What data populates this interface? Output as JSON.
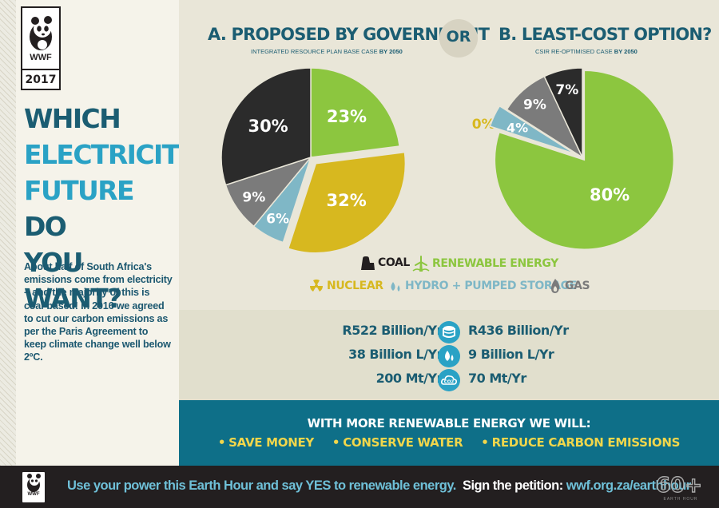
{
  "logo": {
    "name": "WWF",
    "year": "2017"
  },
  "headline": {
    "w1": "WHICH",
    "w2": "ELECTRICITY",
    "w3": "FUTURE",
    "w4": "DO",
    "w5": "YOU WANT?"
  },
  "intro": "About half of South Africa's emissions come from electricity – and the majority of this is coal-based! In 2016 we agreed to cut our carbon emissions as per the Paris Agreement to keep climate change well below 2ºC.",
  "colors": {
    "coal": "#2b2b2b",
    "renewable": "#8cc63f",
    "nuclear": "#d7b81f",
    "hydro": "#7fb7c6",
    "gas": "#7b7b7b",
    "teal": "#1b5d72",
    "blue": "#2aa2c5"
  },
  "or_label": "OR",
  "chart_data": [
    {
      "type": "pie",
      "title": "A. PROPOSED BY GOVERNMENT",
      "subtitle": "INTEGRATED RESOURCE PLAN BASE CASE",
      "subtitle_bold": "BY 2050",
      "slices": [
        {
          "name": "RENEWABLE ENERGY",
          "value": 23,
          "label": "23%",
          "color": "#8cc63f"
        },
        {
          "name": "NUCLEAR",
          "value": 32,
          "label": "32%",
          "color": "#d7b81f"
        },
        {
          "name": "HYDRO + PUMPED STORAGE",
          "value": 6,
          "label": "6%",
          "color": "#7fb7c6"
        },
        {
          "name": "GAS",
          "value": 9,
          "label": "9%",
          "color": "#7b7b7b"
        },
        {
          "name": "COAL",
          "value": 30,
          "label": "30%",
          "color": "#2b2b2b"
        }
      ]
    },
    {
      "type": "pie",
      "title": "B. LEAST-COST OPTION?",
      "subtitle": "CSIR RE-OPTIMISED CASE",
      "subtitle_bold": "BY 2050",
      "slices": [
        {
          "name": "RENEWABLE ENERGY",
          "value": 80,
          "label": "80%",
          "color": "#8cc63f"
        },
        {
          "name": "NUCLEAR",
          "value": 0,
          "label": "0%",
          "color": "#d7b81f"
        },
        {
          "name": "HYDRO + PUMPED STORAGE",
          "value": 4,
          "label": "4%",
          "color": "#7fb7c6"
        },
        {
          "name": "GAS",
          "value": 9,
          "label": "9%",
          "color": "#7b7b7b"
        },
        {
          "name": "COAL",
          "value": 7,
          "label": "7%",
          "color": "#2b2b2b"
        }
      ]
    }
  ],
  "legend": {
    "coal": "COAL",
    "renewable": "RENEWABLE ENERGY",
    "nuclear": "NUCLEAR",
    "hydro": "HYDRO + PUMPED STORAGE",
    "gas": "GAS"
  },
  "savings": [
    {
      "left": "R522 Billion/Yr",
      "icon": "coins-icon",
      "right": "R436 Billion/Yr"
    },
    {
      "left": "38 Billion L/Yr",
      "icon": "water-drop-icon",
      "right": "9 Billion L/Yr"
    },
    {
      "left": "200 Mt/Yr",
      "icon": "co2-cloud-icon",
      "right": "70 Mt/Yr"
    }
  ],
  "action": {
    "heading": "WITH MORE RENEWABLE ENERGY WE WILL:",
    "items": [
      "SAVE MONEY",
      "CONSERVE WATER",
      "REDUCE CARBON EMISSIONS"
    ]
  },
  "footer": {
    "cta": "Use your power this Earth Hour and say YES to renewable energy.",
    "petition_label": "Sign the petition:",
    "url": "wwf.org.za/earthhour",
    "earth_hour_badge": "60+",
    "earth_hour_label": "EARTH HOUR"
  }
}
